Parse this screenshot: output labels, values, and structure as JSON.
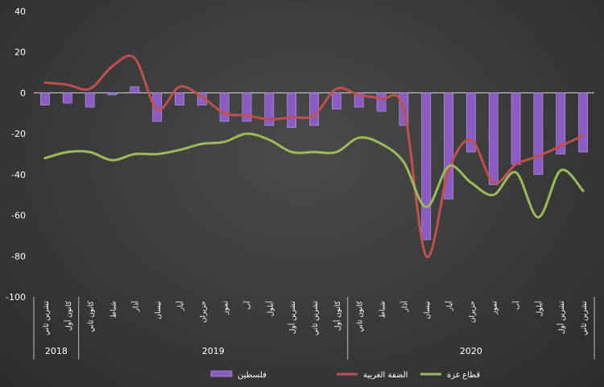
{
  "chart_data": {
    "type": "bar",
    "title": "",
    "xlabel": "",
    "ylabel": "",
    "ylim": [
      -100,
      40
    ],
    "yticks": [
      "40",
      "20",
      "0",
      "-20",
      "-40",
      "-60",
      "-80",
      "-100"
    ],
    "grid": false,
    "legend_position": "bottom",
    "categories": [
      "تشرين ثاني",
      "كانون أول",
      "كانون ثاني",
      "شباط",
      "آذار",
      "نيسان",
      "أيار",
      "حزيران",
      "تموز",
      "آب",
      "أيلول",
      "تشرين أول",
      "تشرين ثاني",
      "كانون أول",
      "كانون ثاني",
      "شباط",
      "آذار",
      "نيسان",
      "أيار",
      "حزيران",
      "تموز",
      "آب",
      "أيلول",
      "تشرين أول",
      "تشرين ثاني"
    ],
    "year_groups": [
      {
        "label": "2018",
        "count": 2
      },
      {
        "label": "2019",
        "count": 12
      },
      {
        "label": "2020",
        "count": 11
      }
    ],
    "series": [
      {
        "name": "فلسطين",
        "type": "bar",
        "color": "#8b5cc4",
        "values": [
          -6,
          -5,
          -7,
          -1,
          3,
          -14,
          -6,
          -6,
          -14,
          -14,
          -16,
          -17,
          -16,
          -8,
          -7,
          -9,
          -16,
          -72,
          -52,
          -29,
          -45,
          -35,
          -40,
          -30,
          -29
        ]
      },
      {
        "name": "الضفة الغربية",
        "type": "line",
        "color": "#c0504d",
        "values": [
          5,
          4,
          2,
          13,
          17,
          -8,
          3,
          -2,
          -10,
          -11,
          -13,
          -12,
          -11,
          2,
          -1,
          -3,
          -8,
          -80,
          -38,
          -23,
          -44,
          -35,
          -31,
          -26,
          -21
        ]
      },
      {
        "name": "قطاع غزة",
        "type": "line",
        "color": "#9bbb59",
        "values": [
          -32,
          -29,
          -29,
          -33,
          -30,
          -30,
          -28,
          -25,
          -24,
          -20,
          -23,
          -29,
          -29,
          -29,
          -22,
          -25,
          -34,
          -56,
          -36,
          -44,
          -50,
          -39,
          -61,
          -38,
          -48
        ]
      }
    ]
  }
}
